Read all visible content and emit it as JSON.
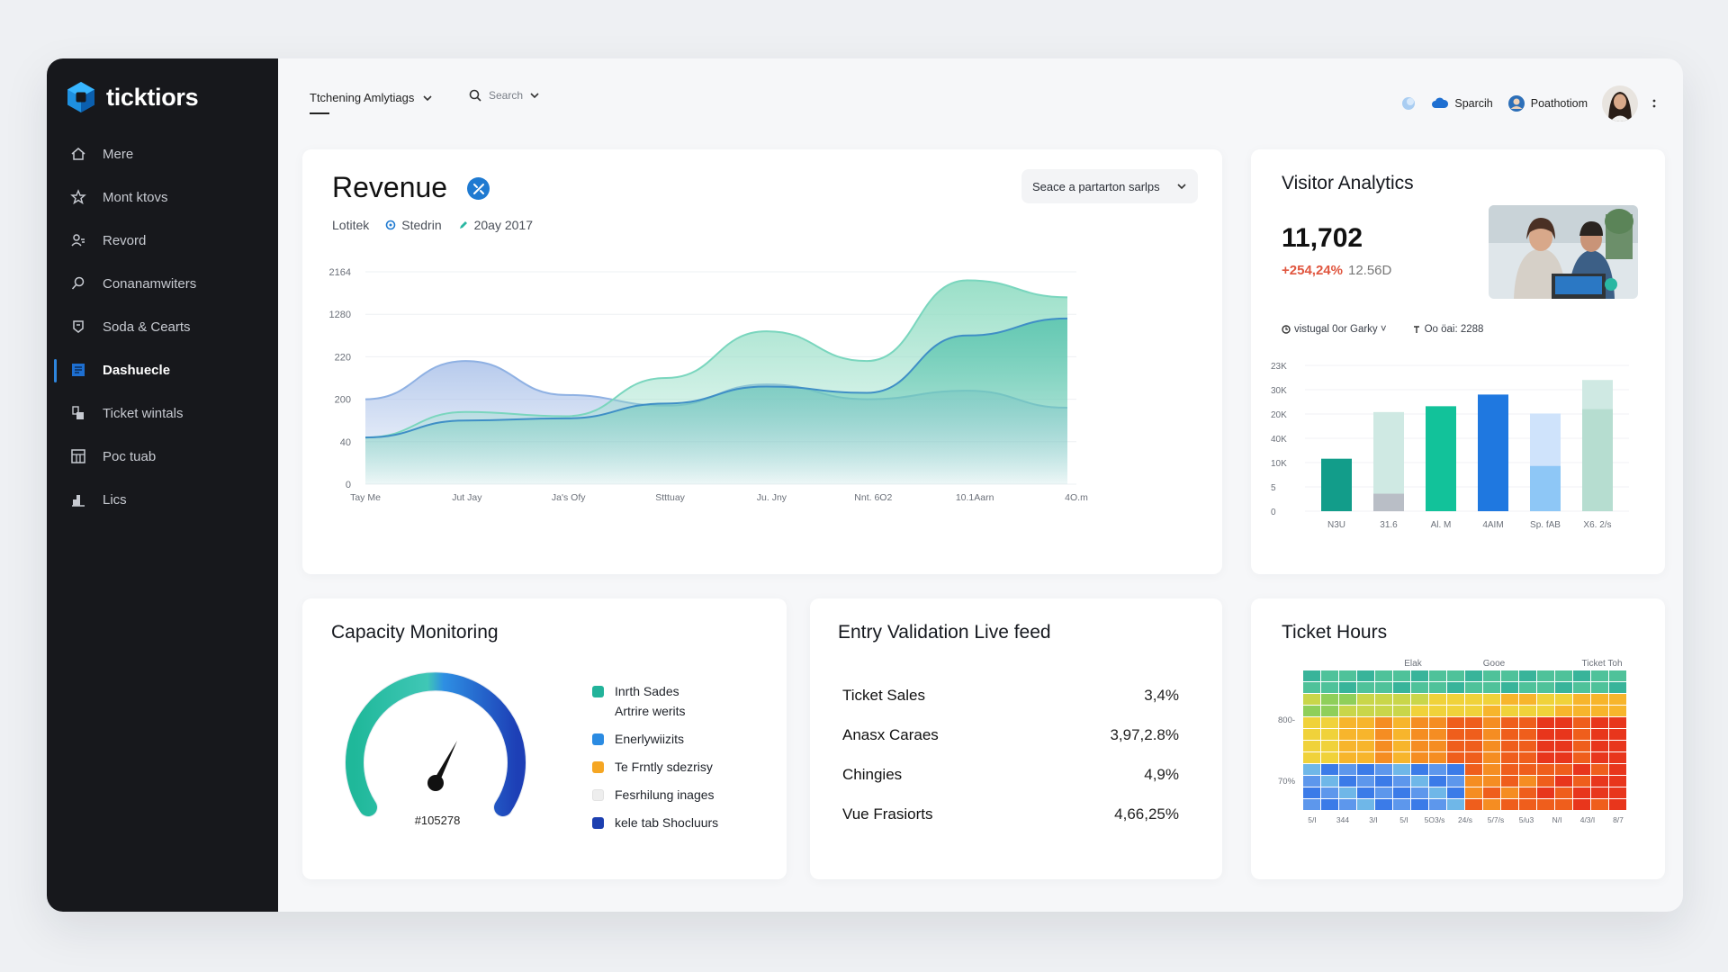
{
  "brand": {
    "name": "ticktiors",
    "accent": "#1e90e0"
  },
  "sidebar": {
    "items": [
      {
        "label": "Mere",
        "icon": "home-icon",
        "active": false
      },
      {
        "label": "Mont ktovs",
        "icon": "star-icon",
        "active": false
      },
      {
        "label": "Revord",
        "icon": "user-icon",
        "active": false
      },
      {
        "label": "Conanamwiters",
        "icon": "search-icon",
        "active": false
      },
      {
        "label": "Soda & Cearts",
        "icon": "badge-icon",
        "active": false
      },
      {
        "label": "Dashuecle",
        "icon": "dashboard-icon",
        "active": true
      },
      {
        "label": "Ticket wintals",
        "icon": "ticket-icon",
        "active": false
      },
      {
        "label": "Poc tuab",
        "icon": "grid-icon",
        "active": false
      },
      {
        "label": "Lics",
        "icon": "chart-icon",
        "active": false
      }
    ]
  },
  "topbar": {
    "tab_label": "Ttchening Amlytiags",
    "search_placeholder": "Search",
    "items": [
      {
        "label": "Sparcih",
        "icon": "cloud-icon"
      },
      {
        "label": "Poathotiom",
        "icon": "profile-icon"
      }
    ]
  },
  "revenue": {
    "title": "Revenue",
    "meta": [
      {
        "label": "Lotitek"
      },
      {
        "label": "Stedrin",
        "icon": "target-icon"
      },
      {
        "label": "20ay 2017",
        "icon": "edit-icon"
      }
    ],
    "select_label": "Seace a partarton sarlps",
    "chart_data": {
      "type": "area",
      "yticks": [
        "2164",
        "1280",
        "220",
        "200",
        "40",
        "0"
      ],
      "xticks": [
        "Tay Me",
        "Jut Jay",
        "Ja's Ofy",
        "Stttuay",
        "Ju. Jny",
        "Nnt. 6O2",
        "10.1Aarn",
        "4O.m"
      ],
      "series": [
        {
          "color": "#9fb9e6",
          "values": [
            0.4,
            0.58,
            0.42,
            0.37,
            0.47,
            0.4,
            0.44,
            0.36
          ]
        },
        {
          "color": "#8fdcc2",
          "values": [
            0.22,
            0.34,
            0.32,
            0.5,
            0.72,
            0.58,
            0.96,
            0.88
          ]
        },
        {
          "color": "#5dc5b0",
          "values": [
            0.22,
            0.3,
            0.31,
            0.38,
            0.46,
            0.43,
            0.7,
            0.78
          ]
        }
      ]
    }
  },
  "visitor": {
    "title": "Visitor Analytics",
    "value": "11,702",
    "change": "+254,24%",
    "change_sub": "12.56D",
    "filters": [
      {
        "label": "vistugal 0or Garky ˅",
        "icon": "clock-icon"
      },
      {
        "label": "Oo öai: 2288",
        "icon": "pin-icon"
      }
    ],
    "chart_data": {
      "type": "bar",
      "yticks": [
        "23K",
        "30K",
        "20K",
        "40K",
        "10K",
        "5",
        "0"
      ],
      "categories": [
        "N3U",
        "31.6",
        "Al. M",
        "4AIM",
        "Sp. fAB",
        "X6. 2/s"
      ],
      "series": [
        {
          "color": "#129d8a",
          "values": [
            0.36,
            0.12,
            0.39,
            0.8,
            0.31,
            0.7
          ]
        },
        {
          "color": "#cfe9e3",
          "values": [
            0.0,
            0.68,
            0.72,
            0.0,
            0.67,
            0.9
          ]
        }
      ]
    }
  },
  "capacity": {
    "title": "Capacity Monitoring",
    "gauge_label": "#105278",
    "legend": [
      {
        "label": "Inrth Sades",
        "sub": "Artrire werits",
        "color": "#22b39a"
      },
      {
        "label": "Enerlywiizits",
        "sub": "",
        "color": "#2b8be2"
      },
      {
        "label": "Te Frntly sdezrisy",
        "sub": "",
        "color": "#f5a623"
      },
      {
        "label": "Fesrhilung inages",
        "sub": "",
        "color": "#eeeeee"
      },
      {
        "label": "kele tab Shocluurs",
        "sub": "",
        "color": "#1c3fb0"
      }
    ]
  },
  "entry": {
    "title": "Entry Validation Live feed",
    "rows": [
      {
        "label": "Ticket Sales",
        "value": "3,4%"
      },
      {
        "label": "Anasx Caraes",
        "value": "3,97,2.8%"
      },
      {
        "label": "Chingies",
        "value": "4,9%"
      },
      {
        "label": "Vue Frasiorts",
        "value": "4,66,25%"
      }
    ]
  },
  "hours": {
    "title": "Ticket Hours",
    "chart_data": {
      "type": "heatmap",
      "col_headers": [
        "Elak",
        "Gooe",
        "Ticket Toh"
      ],
      "row_labels": [
        "800-",
        "70%"
      ],
      "xticks": [
        "5/I",
        "344",
        "3/I",
        "5/I",
        "5O3/s",
        "24/s",
        "5/7/s",
        "5/u3",
        "N/I",
        "4/3/I",
        "8/7"
      ],
      "rows": 12,
      "cols": 18
    }
  }
}
